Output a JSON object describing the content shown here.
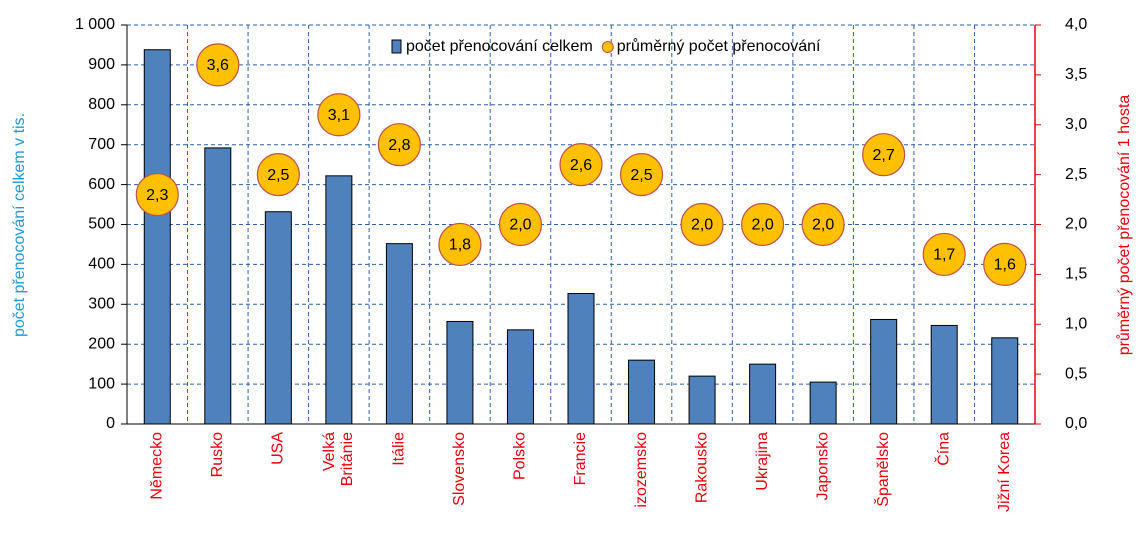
{
  "chart_data": {
    "type": "bar",
    "categories": [
      "Německo",
      "Rusko",
      "USA",
      "Velká Británie",
      "Itálie",
      "Slovensko",
      "Polsko",
      "Francie",
      "izozemsko",
      "Rakousko",
      "Ukrajina",
      "Japonsko",
      "Španělsko",
      "Čína",
      "Jižní Korea"
    ],
    "series": [
      {
        "name": "počet přenocování celkem",
        "type": "bar",
        "color": "#4f81bd",
        "values": [
          938,
          692,
          532,
          622,
          452,
          257,
          236,
          327,
          160,
          120,
          150,
          105,
          262,
          247,
          216
        ]
      },
      {
        "name": "průměrný počet přenocování",
        "type": "scatter",
        "axis": "y2",
        "color": "#ffc000",
        "values": [
          2.3,
          3.6,
          2.5,
          3.1,
          2.8,
          1.8,
          2.0,
          2.6,
          2.5,
          2.0,
          2.0,
          2.0,
          2.7,
          1.7,
          1.6
        ],
        "value_labels": [
          "2,3",
          "3,6",
          "2,5",
          "3,1",
          "2,8",
          "1,8",
          "2,0",
          "2,6",
          "2,5",
          "2,0",
          "2,0",
          "2,0",
          "2,7",
          "1,7",
          "1,6"
        ]
      }
    ],
    "ylabel": "počet přenocování celkem v tis.",
    "y2label": "průměrný počet přenocování 1 hosta",
    "ylim": [
      0,
      1000
    ],
    "yticks": [
      0,
      100,
      200,
      300,
      400,
      500,
      600,
      700,
      800,
      900,
      {
        "value": 1000,
        "label": "1 000"
      }
    ],
    "y2lim": [
      0,
      4
    ],
    "y2ticks": [
      {
        "value": 0,
        "label": "0,0"
      },
      {
        "value": 0.5,
        "label": "0,5"
      },
      {
        "value": 1,
        "label": "1,0"
      },
      {
        "value": 1.5,
        "label": "1,5"
      },
      {
        "value": 2,
        "label": "2,0"
      },
      {
        "value": 2.5,
        "label": "2,5"
      },
      {
        "value": 3,
        "label": "3,0"
      },
      {
        "value": 3.5,
        "label": "3,5"
      },
      {
        "value": 4,
        "label": "4,0"
      }
    ],
    "grid": true,
    "legend": "top"
  }
}
